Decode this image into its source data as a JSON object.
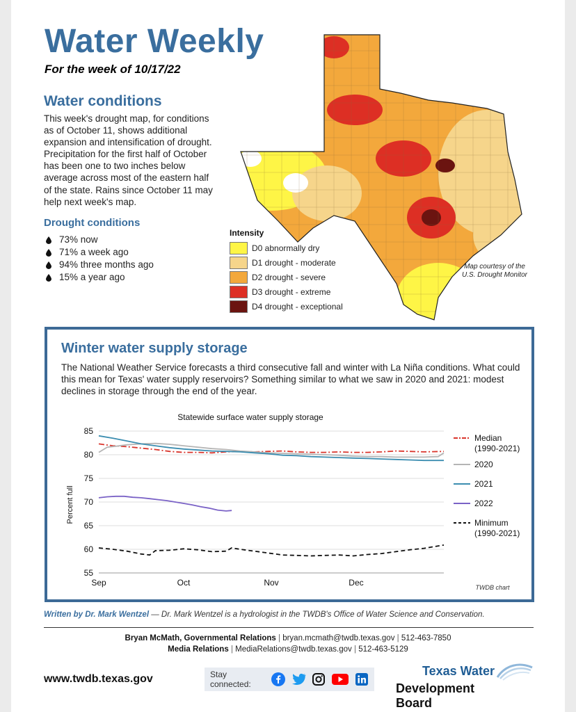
{
  "header": {
    "title": "Water Weekly",
    "subtitle": "For the week of 10/17/22"
  },
  "conditions": {
    "heading": "Water conditions",
    "body": "This week's drought map, for conditions as of October 11, shows additional expansion and intensification of drought. Precipitation for the first half of October has been one to two inches below average across most of the eastern half of the state. Rains since October 11 may help next week's map.",
    "drought_heading": "Drought conditions",
    "stats": [
      "73% now",
      "71% a week ago",
      "94% three months ago",
      "15% a year ago"
    ]
  },
  "map": {
    "legend_title": "Intensity",
    "legend": [
      {
        "code": "D0",
        "label": "D0  abnormally dry",
        "color": "#fef546"
      },
      {
        "code": "D1",
        "label": "D1  drought - moderate",
        "color": "#f6d58b"
      },
      {
        "code": "D2",
        "label": "D2  drought - severe",
        "color": "#f3a83c"
      },
      {
        "code": "D3",
        "label": "D3  drought - extreme",
        "color": "#dd2f24"
      },
      {
        "code": "D4",
        "label": "D4  drought - exceptional",
        "color": "#6b1410"
      }
    ],
    "credit": "Map courtesy of the U.S. Drought Monitor"
  },
  "storage": {
    "heading": "Winter water supply storage",
    "body": "The National Weather Service forecasts a third consecutive fall and winter with La Niña conditions. What could this mean for Texas' water supply reservoirs? Something similar to what we saw in 2020 and 2021: modest declines in storage through the end of the year."
  },
  "chart_data": {
    "type": "line",
    "title": "Statewide surface water supply storage",
    "xlabel": "",
    "ylabel": "Percent full",
    "ylim": [
      55,
      85
    ],
    "yticks": [
      55,
      60,
      65,
      70,
      75,
      80,
      85
    ],
    "xlim": [
      0,
      122
    ],
    "xticks": [
      {
        "label": "Sep",
        "x": 0
      },
      {
        "label": "Oct",
        "x": 30
      },
      {
        "label": "Nov",
        "x": 61
      },
      {
        "label": "Dec",
        "x": 91
      }
    ],
    "credit": "TWDB chart",
    "series": [
      {
        "name": "Median\n(1990-2021)",
        "style": "dashdot",
        "color": "#d9342b",
        "x": [
          0,
          5,
          10,
          15,
          20,
          25,
          30,
          35,
          40,
          45,
          50,
          55,
          60,
          65,
          70,
          75,
          80,
          85,
          90,
          95,
          100,
          105,
          110,
          115,
          122
        ],
        "values": [
          82.3,
          81.9,
          81.7,
          81.4,
          81.1,
          80.7,
          80.5,
          80.5,
          80.4,
          80.6,
          80.7,
          80.6,
          80.7,
          80.8,
          80.6,
          80.5,
          80.5,
          80.6,
          80.5,
          80.5,
          80.6,
          80.8,
          80.7,
          80.6,
          80.7
        ]
      },
      {
        "name": "2020",
        "style": "solid",
        "color": "#b5b5b5",
        "x": [
          0,
          3,
          6,
          10,
          15,
          20,
          25,
          30,
          35,
          40,
          45,
          50,
          55,
          60,
          65,
          70,
          75,
          80,
          85,
          90,
          95,
          100,
          105,
          110,
          115,
          120,
          122
        ],
        "values": [
          80.5,
          81.6,
          81.8,
          82.1,
          82.3,
          82.4,
          82.2,
          81.9,
          81.6,
          81.3,
          81.1,
          80.8,
          80.6,
          80.4,
          80.3,
          80.2,
          80.1,
          80.0,
          79.9,
          79.7,
          79.6,
          79.6,
          79.5,
          79.5,
          79.5,
          79.6,
          80.4
        ]
      },
      {
        "name": "2021",
        "style": "solid",
        "color": "#3b8db0",
        "x": [
          0,
          5,
          10,
          15,
          20,
          25,
          30,
          35,
          40,
          45,
          50,
          55,
          60,
          65,
          70,
          75,
          80,
          85,
          90,
          95,
          100,
          105,
          110,
          115,
          122
        ],
        "values": [
          84.0,
          83.5,
          82.9,
          82.3,
          81.9,
          81.5,
          81.2,
          81.0,
          80.8,
          80.7,
          80.6,
          80.4,
          80.2,
          79.9,
          79.8,
          79.6,
          79.5,
          79.4,
          79.3,
          79.2,
          79.1,
          79.0,
          78.9,
          78.8,
          78.8
        ]
      },
      {
        "name": "2022",
        "style": "solid",
        "color": "#7a62c6",
        "x": [
          0,
          3,
          6,
          9,
          12,
          15,
          18,
          21,
          24,
          27,
          30,
          33,
          36,
          39,
          42,
          45,
          47
        ],
        "values": [
          70.9,
          71.1,
          71.2,
          71.2,
          71.0,
          70.9,
          70.7,
          70.5,
          70.3,
          70.0,
          69.7,
          69.4,
          69.0,
          68.7,
          68.3,
          68.1,
          68.2
        ]
      },
      {
        "name": "Minimum\n(1990-2021)",
        "style": "dashed",
        "color": "#111111",
        "x": [
          0,
          5,
          10,
          15,
          18,
          20,
          25,
          30,
          35,
          40,
          45,
          47,
          50,
          55,
          60,
          65,
          70,
          75,
          80,
          85,
          90,
          95,
          100,
          105,
          110,
          115,
          122
        ],
        "values": [
          60.3,
          60.0,
          59.6,
          59.0,
          58.8,
          59.7,
          59.8,
          60.1,
          59.9,
          59.5,
          59.6,
          60.3,
          60.0,
          59.6,
          59.2,
          58.8,
          58.7,
          58.6,
          58.7,
          58.8,
          58.6,
          58.9,
          59.1,
          59.5,
          59.9,
          60.2,
          60.9
        ]
      }
    ]
  },
  "footer": {
    "author": "Written by Dr. Mark Wentzel",
    "author_note": " — Dr. Mark Wentzel is a hydrologist in the TWDB's Office of Water Science and Conservation.",
    "contact1_name": "Bryan McMath, Governmental Relations",
    "contact1_email": "bryan.mcmath@twdb.texas.gov",
    "contact1_phone": "512-463-7850",
    "contact2_name": "Media Relations",
    "contact2_email": "MediaRelations@twdb.texas.gov",
    "contact2_phone": "512-463-5129",
    "sep": "|",
    "url": "www.twdb.texas.gov",
    "stay_connected": "Stay connected:",
    "logo_line1": "Texas Water",
    "logo_line2": "Development Board"
  }
}
